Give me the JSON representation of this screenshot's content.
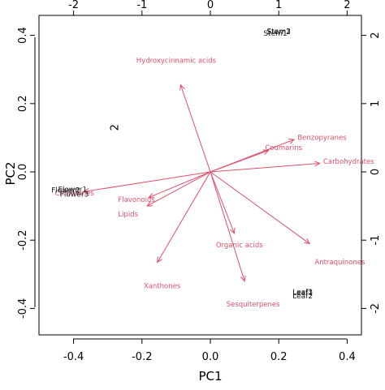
{
  "chart_data": {
    "type": "scatter",
    "subtype": "pca-biplot",
    "title": "",
    "xlabel": "PC1",
    "ylabel": "PC2",
    "xlim": [
      -0.47,
      0.47
    ],
    "ylim": [
      -0.47,
      0.47
    ],
    "x_ticks": [
      "-0.4",
      "-0.2",
      "0.0",
      "0.2",
      "0.4"
    ],
    "y_ticks": [
      "-0.4",
      "-0.2",
      "0.0",
      "0.2",
      "0.4"
    ],
    "top_ticks": [
      "-2",
      "-1",
      "0",
      "1",
      "2"
    ],
    "right_ticks": [
      "-2",
      "-1",
      "0",
      "1",
      "2"
    ],
    "secondary_scale": 5,
    "colors": {
      "observations": "#000000",
      "variables": "#e0506a"
    },
    "observations": [
      {
        "label": "Stem2",
        "x": 0.2,
        "y": 0.41
      },
      {
        "label": "Stem3",
        "x": 0.2,
        "y": 0.411
      },
      {
        "label": "Stem1",
        "x": 0.19,
        "y": 0.405
      },
      {
        "label": "Flower1",
        "x": -0.445,
        "y": -0.052
      },
      {
        "label": "Flower2",
        "x": -0.465,
        "y": -0.055
      },
      {
        "label": "Flower3",
        "x": -0.44,
        "y": -0.066
      },
      {
        "label": "Leaf3",
        "x": 0.27,
        "y": -0.353
      },
      {
        "label": "Leaf1",
        "x": 0.27,
        "y": -0.355
      },
      {
        "label": "Leaf2",
        "x": 0.27,
        "y": -0.365
      }
    ],
    "stray_label": {
      "label": "2",
      "x": -0.27,
      "y": 0.13
    },
    "variables": [
      {
        "label": "Hydroxycinnamic acids",
        "x": -0.087,
        "y": 0.255,
        "lx": -0.1,
        "ly": 0.325,
        "anchor": "middle"
      },
      {
        "label": "Benzopyranes",
        "x": 0.245,
        "y": 0.095,
        "lx": 0.255,
        "ly": 0.1,
        "anchor": "start"
      },
      {
        "label": "Coumarins",
        "x": 0.17,
        "y": 0.063,
        "lx": 0.16,
        "ly": 0.07,
        "anchor": "start"
      },
      {
        "label": "Carbohydrates",
        "x": 0.32,
        "y": 0.025,
        "lx": 0.33,
        "ly": 0.03,
        "anchor": "start"
      },
      {
        "label": "Chromones",
        "x": -0.37,
        "y": -0.058,
        "lx": -0.455,
        "ly": -0.063,
        "anchor": "start"
      },
      {
        "label": "Flavonoids",
        "x": -0.18,
        "y": -0.075,
        "lx": -0.27,
        "ly": -0.082,
        "anchor": "start"
      },
      {
        "label": "Lipids",
        "x": -0.185,
        "y": -0.1,
        "lx": -0.27,
        "ly": -0.125,
        "anchor": "start"
      },
      {
        "label": "Organic acids",
        "x": 0.07,
        "y": -0.18,
        "lx": 0.085,
        "ly": -0.215,
        "anchor": "middle"
      },
      {
        "label": "Antraquinones",
        "x": 0.29,
        "y": -0.21,
        "lx": 0.305,
        "ly": -0.265,
        "anchor": "start"
      },
      {
        "label": "Xanthones",
        "x": -0.155,
        "y": -0.265,
        "lx": -0.195,
        "ly": -0.335,
        "anchor": "start"
      },
      {
        "label": "Sesquiterpenes",
        "x": 0.1,
        "y": -0.32,
        "lx": 0.125,
        "ly": -0.388,
        "anchor": "middle"
      }
    ]
  }
}
